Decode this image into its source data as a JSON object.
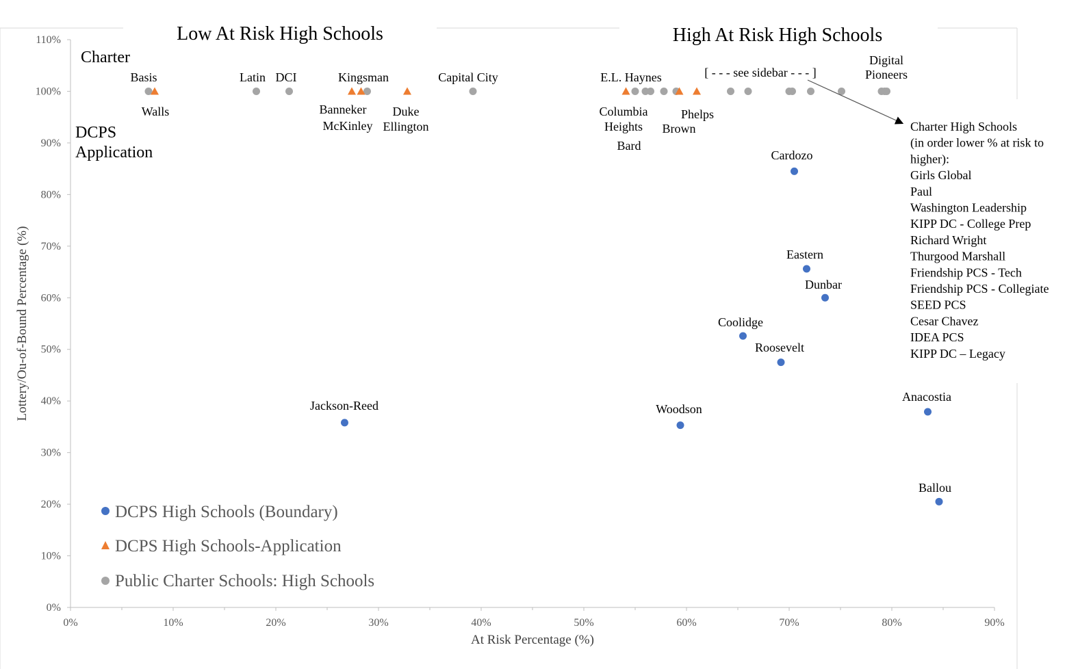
{
  "chart_data": {
    "type": "scatter",
    "xlabel": "At Risk Percentage (%)",
    "ylabel": "Lottery/Ou-of-Bound Percentage  (%)",
    "xlim": [
      0,
      90
    ],
    "ylim": [
      0,
      110
    ],
    "x_ticks": [
      "0%",
      "10%",
      "20%",
      "30%",
      "40%",
      "50%",
      "60%",
      "70%",
      "80%",
      "90%"
    ],
    "y_ticks": [
      "0%",
      "10%",
      "20%",
      "30%",
      "40%",
      "50%",
      "60%",
      "70%",
      "80%",
      "90%",
      "100%",
      "110%"
    ],
    "section_titles": {
      "low": "Low At Risk High Schools",
      "high": "High At Risk High Schools"
    },
    "group_labels": {
      "charter": "Charter",
      "dcps": "DCPS",
      "application": "Application"
    },
    "colors": {
      "boundary": "#4472C4",
      "application": "#ED7D31",
      "charter": "#A5A5A5"
    },
    "legend": [
      "DCPS High Schools (Boundary)",
      "DCPS High Schools-Application",
      "Public Charter Schools: High Schools"
    ],
    "series": [
      {
        "name": "DCPS High Schools (Boundary)",
        "marker": "circle",
        "points": [
          {
            "x": 26.7,
            "y": 35.8
          },
          {
            "x": 59.4,
            "y": 35.3
          },
          {
            "x": 65.5,
            "y": 52.6
          },
          {
            "x": 69.2,
            "y": 47.5
          },
          {
            "x": 70.5,
            "y": 84.5
          },
          {
            "x": 71.7,
            "y": 65.6
          },
          {
            "x": 73.5,
            "y": 60.0
          },
          {
            "x": 83.5,
            "y": 37.9
          },
          {
            "x": 84.6,
            "y": 20.5
          }
        ]
      },
      {
        "name": "DCPS High Schools-Application",
        "marker": "triangle",
        "points": [
          {
            "x": 8.2,
            "y": 100
          },
          {
            "x": 27.4,
            "y": 100
          },
          {
            "x": 28.3,
            "y": 100
          },
          {
            "x": 32.8,
            "y": 100
          },
          {
            "x": 54.1,
            "y": 100
          },
          {
            "x": 59.3,
            "y": 100
          },
          {
            "x": 61.0,
            "y": 100
          }
        ]
      },
      {
        "name": "Public Charter Schools: High Schools",
        "marker": "circle",
        "points": [
          {
            "x": 7.6,
            "y": 100
          },
          {
            "x": 18.1,
            "y": 100
          },
          {
            "x": 21.3,
            "y": 100
          },
          {
            "x": 28.9,
            "y": 100
          },
          {
            "x": 39.2,
            "y": 100
          },
          {
            "x": 55.0,
            "y": 100
          },
          {
            "x": 56.0,
            "y": 100
          },
          {
            "x": 56.5,
            "y": 100
          },
          {
            "x": 57.8,
            "y": 100
          },
          {
            "x": 59.0,
            "y": 100
          },
          {
            "x": 64.3,
            "y": 100
          },
          {
            "x": 66.0,
            "y": 100
          },
          {
            "x": 70.0,
            "y": 100
          },
          {
            "x": 70.3,
            "y": 100
          },
          {
            "x": 72.1,
            "y": 100
          },
          {
            "x": 75.1,
            "y": 100
          },
          {
            "x": 79.0,
            "y": 100
          },
          {
            "x": 79.3,
            "y": 100
          },
          {
            "x": 79.5,
            "y": 100
          }
        ]
      }
    ],
    "point_labels": [
      "Basis",
      "Walls",
      "Latin",
      "DCI",
      "Kingsman",
      "Banneker",
      "McKinley",
      "Duke",
      "Ellington",
      "Capital City",
      "E.L. Haynes",
      "Columbia",
      "Heights",
      "Bard",
      "Phelps",
      "Brown",
      "[ - - - see sidebar - - - ]",
      "Digital",
      "Pioneers",
      "Cardozo",
      "Eastern",
      "Dunbar",
      "Coolidge",
      "Roosevelt",
      "Jackson-Reed",
      "Woodson",
      "Anacostia",
      "Ballou"
    ],
    "sidebar": {
      "lines": [
        "Charter High Schools",
        "(in order lower % at risk to",
        "higher):",
        "Girls Global",
        "Paul",
        "Washington Leadership",
        "KIPP DC - College Prep",
        "Richard Wright",
        "Thurgood Marshall",
        "Friendship PCS - Tech",
        "Friendship PCS - Collegiate",
        "SEED PCS",
        "Cesar Chavez",
        "IDEA PCS",
        "KIPP DC – Legacy"
      ]
    }
  }
}
